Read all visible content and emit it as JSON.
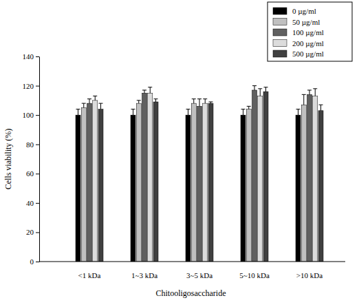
{
  "chart_data": {
    "type": "bar",
    "x_label": "Chitooligosaccharide",
    "y_label": "Cells viability (%)",
    "categories": [
      "<1 kDa",
      "1~3 kDa",
      "3~5 kDa",
      "5~10 kDa",
      ">10 kDa"
    ],
    "series": [
      {
        "name": "0 µg/ml",
        "color": "#000000",
        "values": [
          100,
          100,
          100,
          100,
          100
        ],
        "errors": [
          4,
          4,
          4,
          4,
          4
        ]
      },
      {
        "name": "50 µg/ml",
        "color": "#c0c0c0",
        "values": [
          105,
          108,
          108,
          104,
          107
        ],
        "errors": [
          3,
          2,
          3,
          2,
          7
        ]
      },
      {
        "name": "100 µg/ml",
        "color": "#606060",
        "values": [
          108,
          115,
          106,
          117,
          114
        ],
        "errors": [
          3,
          2,
          5,
          3,
          3
        ]
      },
      {
        "name": "200 µg/ml",
        "color": "#dcdcdc",
        "values": [
          110,
          115,
          108,
          113,
          113
        ],
        "errors": [
          3,
          4,
          3,
          5,
          5
        ]
      },
      {
        "name": "500 µg/ml",
        "color": "#404040",
        "values": [
          104,
          109,
          108,
          116,
          103
        ],
        "errors": [
          4,
          2,
          1,
          3,
          4
        ]
      }
    ],
    "ylim": [
      0,
      140
    ],
    "yticks": [
      0,
      20,
      40,
      60,
      80,
      100,
      120,
      140
    ],
    "grid": false,
    "legend": "upper right"
  }
}
